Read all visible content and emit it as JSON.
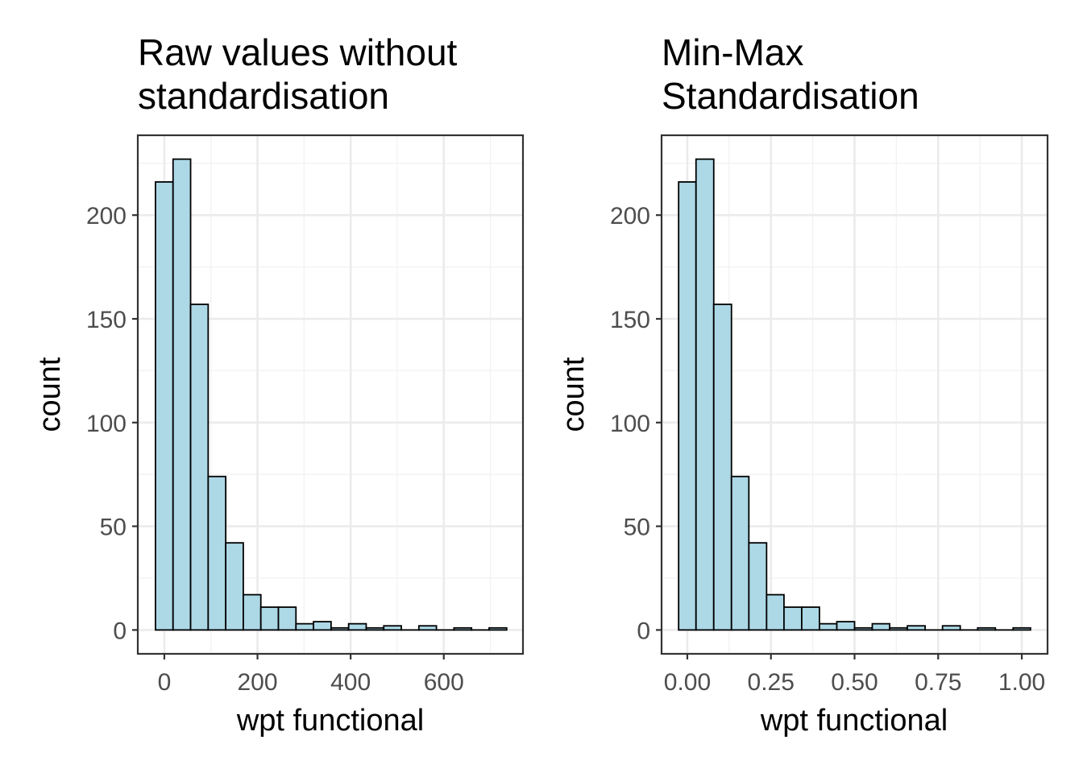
{
  "chart_data": [
    {
      "type": "bar",
      "title": "Raw values without standardisation",
      "title_lines": [
        "Raw values without",
        "standardisation"
      ],
      "xlabel": "wpt functional",
      "ylabel": "count",
      "xlim": [
        -57,
        770
      ],
      "ylim": [
        -11.5,
        238.5
      ],
      "grid": true,
      "x_ticks": [
        0,
        200,
        400,
        600
      ],
      "x_tick_labels": [
        "0",
        "200",
        "400",
        "600"
      ],
      "y_ticks": [
        0,
        50,
        100,
        150,
        200
      ],
      "y_tick_labels": [
        "0",
        "50",
        "100",
        "150",
        "200"
      ],
      "bin_width": 37.7,
      "bins": [
        {
          "x0": -19,
          "x1": 18.7,
          "count": 216
        },
        {
          "x0": 18.7,
          "x1": 56.4,
          "count": 227
        },
        {
          "x0": 56.4,
          "x1": 94.1,
          "count": 157
        },
        {
          "x0": 94.1,
          "x1": 131.8,
          "count": 74
        },
        {
          "x0": 131.8,
          "x1": 169.5,
          "count": 42
        },
        {
          "x0": 169.5,
          "x1": 207.2,
          "count": 17
        },
        {
          "x0": 207.2,
          "x1": 244.9,
          "count": 11
        },
        {
          "x0": 244.9,
          "x1": 282.6,
          "count": 11
        },
        {
          "x0": 282.6,
          "x1": 320.3,
          "count": 3
        },
        {
          "x0": 320.3,
          "x1": 358.0,
          "count": 4
        },
        {
          "x0": 358.0,
          "x1": 395.7,
          "count": 1
        },
        {
          "x0": 395.7,
          "x1": 433.4,
          "count": 3
        },
        {
          "x0": 433.4,
          "x1": 471.1,
          "count": 1
        },
        {
          "x0": 471.1,
          "x1": 508.8,
          "count": 2
        },
        {
          "x0": 508.8,
          "x1": 546.5,
          "count": 0
        },
        {
          "x0": 546.5,
          "x1": 584.2,
          "count": 2
        },
        {
          "x0": 584.2,
          "x1": 621.9,
          "count": 0
        },
        {
          "x0": 621.9,
          "x1": 659.6,
          "count": 1
        },
        {
          "x0": 659.6,
          "x1": 697.3,
          "count": 0
        },
        {
          "x0": 697.3,
          "x1": 735.0,
          "count": 1
        }
      ]
    },
    {
      "type": "bar",
      "title": "Min-Max Standardisation",
      "title_lines": [
        "Min-Max",
        "Standardisation"
      ],
      "xlabel": "wpt functional",
      "ylabel": "count",
      "xlim": [
        -0.077,
        1.077
      ],
      "ylim": [
        -11.5,
        238.5
      ],
      "grid": true,
      "x_ticks": [
        0,
        0.25,
        0.5,
        0.75,
        1.0
      ],
      "x_tick_labels": [
        "0.00",
        "0.25",
        "0.50",
        "0.75",
        "1.00"
      ],
      "y_ticks": [
        0,
        50,
        100,
        150,
        200
      ],
      "y_tick_labels": [
        "0",
        "50",
        "100",
        "150",
        "200"
      ],
      "bin_width": 0.0526,
      "bins": [
        {
          "x0": -0.026,
          "x1": 0.026,
          "count": 216
        },
        {
          "x0": 0.026,
          "x1": 0.079,
          "count": 227
        },
        {
          "x0": 0.079,
          "x1": 0.132,
          "count": 157
        },
        {
          "x0": 0.132,
          "x1": 0.184,
          "count": 74
        },
        {
          "x0": 0.184,
          "x1": 0.237,
          "count": 42
        },
        {
          "x0": 0.237,
          "x1": 0.289,
          "count": 17
        },
        {
          "x0": 0.289,
          "x1": 0.342,
          "count": 11
        },
        {
          "x0": 0.342,
          "x1": 0.395,
          "count": 11
        },
        {
          "x0": 0.395,
          "x1": 0.447,
          "count": 3
        },
        {
          "x0": 0.447,
          "x1": 0.5,
          "count": 4
        },
        {
          "x0": 0.5,
          "x1": 0.553,
          "count": 1
        },
        {
          "x0": 0.553,
          "x1": 0.605,
          "count": 3
        },
        {
          "x0": 0.605,
          "x1": 0.658,
          "count": 1
        },
        {
          "x0": 0.658,
          "x1": 0.711,
          "count": 2
        },
        {
          "x0": 0.711,
          "x1": 0.763,
          "count": 0
        },
        {
          "x0": 0.763,
          "x1": 0.816,
          "count": 2
        },
        {
          "x0": 0.816,
          "x1": 0.868,
          "count": 0
        },
        {
          "x0": 0.868,
          "x1": 0.921,
          "count": 1
        },
        {
          "x0": 0.921,
          "x1": 0.974,
          "count": 0
        },
        {
          "x0": 0.974,
          "x1": 1.026,
          "count": 1
        }
      ]
    }
  ]
}
